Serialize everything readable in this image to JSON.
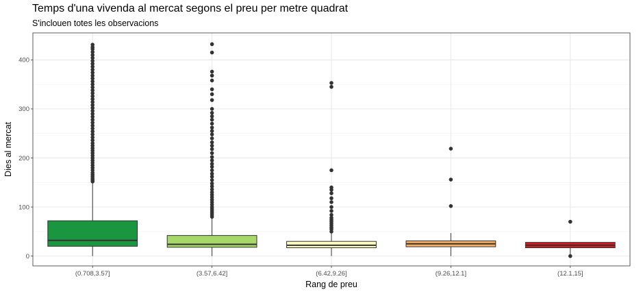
{
  "chart_data": {
    "type": "boxplot",
    "title": "Temps d'una vivenda al mercat segons el preu per metre quadrat",
    "subtitle": "S'inclouen totes les observacions",
    "xlabel": "Rang de preu",
    "ylabel": "Dies al mercat",
    "ylim": [
      -20,
      455
    ],
    "yticks": [
      0,
      100,
      200,
      300,
      400
    ],
    "grid": true,
    "categories": [
      "(0.708,3.57]",
      "(3.57,6.42]",
      "(6.42,9.26]",
      "(9.26,12.1]",
      "(12.1,15]"
    ],
    "boxes": [
      {
        "category": "(0.708,3.57]",
        "color": "#1a9641",
        "whisker_low": 0,
        "q1": 20,
        "median": 32,
        "q3": 72,
        "whisker_high": 150,
        "outliers": [
          152,
          155,
          158,
          162,
          166,
          170,
          175,
          180,
          185,
          190,
          195,
          200,
          205,
          210,
          215,
          220,
          225,
          230,
          236,
          242,
          248,
          254,
          260,
          266,
          272,
          278,
          284,
          290,
          296,
          302,
          308,
          314,
          320,
          326,
          332,
          338,
          344,
          350,
          356,
          362,
          368,
          374,
          380,
          386,
          392,
          398,
          404,
          410,
          416,
          422,
          426,
          431
        ]
      },
      {
        "category": "(3.57,6.42]",
        "color": "#a6d96a",
        "whisker_low": 0,
        "q1": 18,
        "median": 24,
        "q3": 42,
        "whisker_high": 78,
        "outliers": [
          80,
          84,
          88,
          92,
          96,
          100,
          105,
          110,
          115,
          120,
          125,
          130,
          136,
          142,
          148,
          155,
          162,
          168,
          175,
          182,
          188,
          195,
          202,
          210,
          218,
          225,
          232,
          240,
          248,
          255,
          262,
          270,
          278,
          285,
          292,
          300,
          318,
          330,
          340,
          358,
          368,
          376,
          415,
          432
        ]
      },
      {
        "category": "(6.42,9.26]",
        "color": "#ffffbf",
        "whisker_low": 0,
        "q1": 17,
        "median": 22,
        "q3": 30,
        "whisker_high": 48,
        "outliers": [
          50,
          55,
          58,
          62,
          66,
          70,
          74,
          78,
          84,
          92,
          100,
          110,
          118,
          128,
          135,
          140,
          175,
          345,
          353
        ]
      },
      {
        "category": "(9.26,12.1]",
        "color": "#fdae61",
        "whisker_low": 0,
        "q1": 19,
        "median": 25,
        "q3": 31,
        "whisker_high": 47,
        "outliers": [
          102,
          156,
          219
        ]
      },
      {
        "category": "(12.1,15]",
        "color": "#d7191c",
        "whisker_low": 2,
        "q1": 17,
        "median": 22,
        "q3": 28,
        "whisker_high": 28,
        "outliers": [
          0,
          70
        ]
      }
    ]
  }
}
